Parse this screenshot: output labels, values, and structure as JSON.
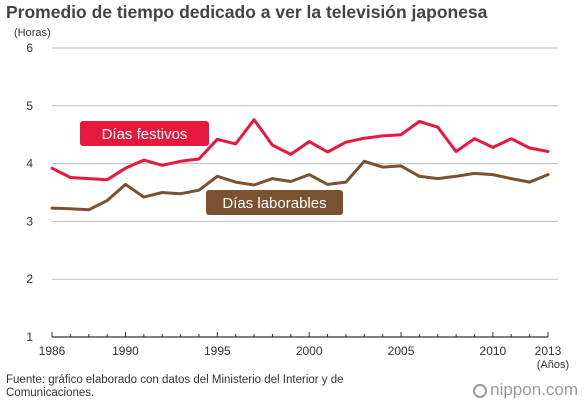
{
  "title": "Promedio de tiempo dedicado a ver la televisión japonesa",
  "source_note": "Fuente: gráfico elaborado con datos del Ministerio del Interior y de Comunicaciones.",
  "brand": "nippon.com",
  "brand_icon": "nippon-logo-icon",
  "chart_data": {
    "type": "line",
    "title": "Promedio de tiempo dedicado a ver la televisión japonesa",
    "ylabel": "(Horas)",
    "xlabel": "(Años)",
    "ylim": [
      1,
      6
    ],
    "yticks": [
      1,
      2,
      3,
      4,
      5,
      6
    ],
    "xlim": [
      1986,
      2013
    ],
    "xtick_labels": [
      "1986",
      "1990",
      "1995",
      "2000",
      "2005",
      "2010",
      "2013"
    ],
    "grid": "horizontal",
    "x": [
      1986,
      1987,
      1988,
      1989,
      1990,
      1991,
      1992,
      1993,
      1994,
      1995,
      1996,
      1997,
      1998,
      1999,
      2000,
      2001,
      2002,
      2003,
      2004,
      2005,
      2006,
      2007,
      2008,
      2009,
      2010,
      2011,
      2012,
      2013
    ],
    "series": [
      {
        "name": "Días festivos",
        "color": "#e8173c",
        "values": [
          3.92,
          3.76,
          3.74,
          3.72,
          3.92,
          4.06,
          3.97,
          4.04,
          4.08,
          4.42,
          4.34,
          4.76,
          4.32,
          4.16,
          4.38,
          4.2,
          4.37,
          4.44,
          4.48,
          4.5,
          4.73,
          4.63,
          4.21,
          4.43,
          4.28,
          4.43,
          4.27,
          4.21
        ]
      },
      {
        "name": "Días laborables",
        "color": "#7a5230",
        "values": [
          3.23,
          3.22,
          3.2,
          3.36,
          3.64,
          3.42,
          3.5,
          3.48,
          3.54,
          3.78,
          3.68,
          3.63,
          3.74,
          3.69,
          3.81,
          3.64,
          3.68,
          4.04,
          3.94,
          3.96,
          3.78,
          3.74,
          3.78,
          3.83,
          3.81,
          3.74,
          3.68,
          3.81
        ]
      }
    ]
  }
}
